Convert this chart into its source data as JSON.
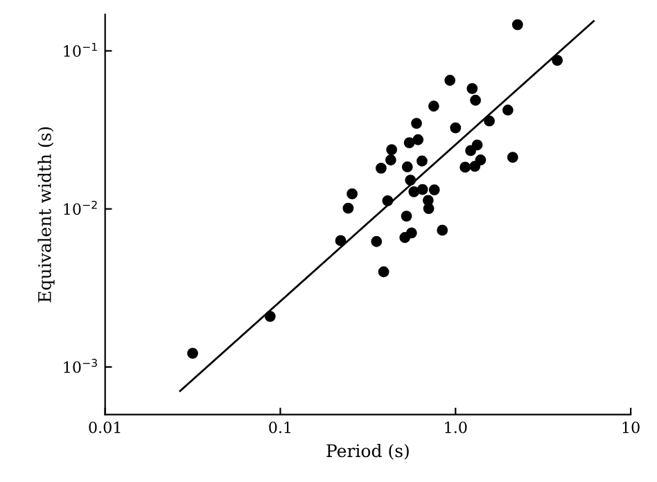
{
  "chart_data": {
    "type": "scatter",
    "xlabel": "Period (s)",
    "ylabel": "Equivalent width (s)",
    "log": "xy",
    "grid": false,
    "marker": "circle",
    "xlim": [
      0.01,
      10
    ],
    "ylim": [
      0.0005,
      0.17
    ],
    "xticks": [
      {
        "value": 0.01,
        "label": "0.01"
      },
      0.1,
      {
        "value": 1,
        "label": "1.0"
      },
      10
    ],
    "yticks": [
      {
        "value": 0.001,
        "label": "10$^{−3}$"
      },
      {
        "value": 0.01,
        "label": "10$^{−2}$"
      },
      {
        "value": 0.1,
        "label": "10$^{−1}$"
      }
    ],
    "series": [
      {
        "color": "#000000",
        "x": [
          0.0316,
          0.0875,
          0.221,
          0.244,
          0.257,
          0.354,
          0.376,
          0.389,
          0.41,
          0.427,
          0.432,
          0.525,
          0.514,
          0.561,
          0.531,
          0.545,
          0.553,
          0.579,
          0.599,
          0.611,
          0.644,
          0.648,
          0.698,
          0.703,
          0.751,
          0.757,
          0.841,
          0.929,
          1.0,
          1.135,
          1.22,
          1.245,
          1.3,
          1.29,
          1.33,
          1.39,
          1.56,
          1.99,
          2.12,
          2.26,
          3.81
        ],
        "values": [
          0.00122,
          0.00209,
          0.0063,
          0.0101,
          0.01245,
          0.00622,
          0.0181,
          0.004,
          0.01127,
          0.0204,
          0.0237,
          0.009,
          0.00659,
          0.00705,
          0.01845,
          0.0262,
          0.0152,
          0.01285,
          0.0348,
          0.0274,
          0.0201,
          0.01327,
          0.01133,
          0.01006,
          0.0447,
          0.0132,
          0.00733,
          0.0651,
          0.0326,
          0.01837,
          0.0234,
          0.0578,
          0.0487,
          0.0186,
          0.0254,
          0.0204,
          0.036,
          0.0422,
          0.0212,
          0.1466,
          0.0871
        ]
      },
      {
        "type": "line",
        "color": "#000000",
        "marker": "none",
        "line_style": "solid",
        "x": [
          0.0268,
          6.15
        ],
        "values": [
          0.000705,
          0.1545
        ]
      }
    ]
  }
}
